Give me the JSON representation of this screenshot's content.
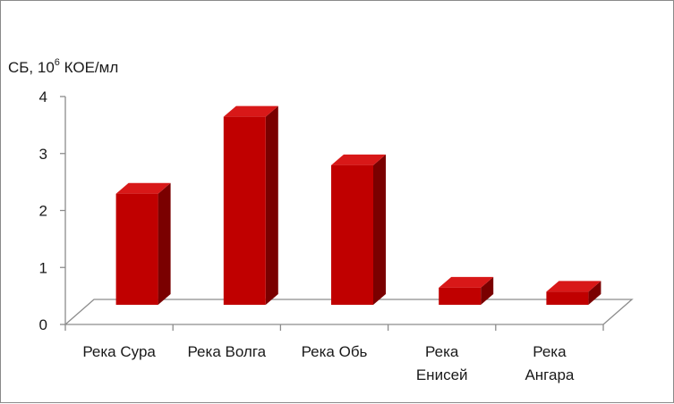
{
  "chart_data": {
    "type": "bar",
    "style": "3d-column",
    "ylabel_prefix": "СБ, 10",
    "ylabel_sup": "6",
    "ylabel_suffix": " КОЕ/мл",
    "categories": [
      [
        "Река Сура"
      ],
      [
        "Река Волга"
      ],
      [
        "Река Обь"
      ],
      [
        "Река",
        "Енисей"
      ],
      [
        "Река",
        "Ангара"
      ]
    ],
    "values": [
      1.95,
      3.3,
      2.45,
      0.3,
      0.23
    ],
    "yticks": [
      "0",
      "1",
      "2",
      "3",
      "4"
    ],
    "ylim": [
      0,
      4
    ],
    "grid": false,
    "legend": "none",
    "colors": {
      "bar_front": "#c00000",
      "bar_top": "#d81818",
      "bar_side": "#7a0000",
      "axis": "#8c8c8c"
    }
  }
}
